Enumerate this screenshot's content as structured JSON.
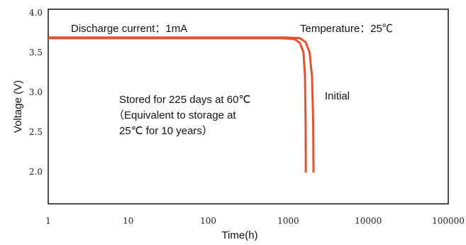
{
  "chart_data": {
    "type": "line",
    "title": "",
    "xlabel": "Time(h)",
    "ylabel": "Voltage (V)",
    "x_scale": "log",
    "xlim": [
      1,
      100000
    ],
    "ylim": [
      1.7,
      4.0
    ],
    "grid": false,
    "x_ticks": [
      {
        "value": 1,
        "label": "1"
      },
      {
        "value": 10,
        "label": "10"
      },
      {
        "value": 100,
        "label": "100"
      },
      {
        "value": 1000,
        "label": "1000"
      },
      {
        "value": 10000,
        "label": "10000"
      },
      {
        "value": 100000,
        "label": "100000"
      }
    ],
    "y_ticks": [
      {
        "value": 4.0,
        "label": "4.0"
      },
      {
        "value": 3.5,
        "label": "3.5"
      },
      {
        "value": 3.0,
        "label": "3.0"
      },
      {
        "value": 2.5,
        "label": "2.5"
      },
      {
        "value": 2.0,
        "label": "2.0"
      }
    ],
    "series": [
      {
        "name": "Stored for 225 days at 60℃",
        "color": "#e8502f",
        "x": [
          1,
          100,
          800,
          1200,
          1400,
          1550,
          1620,
          1650,
          1660
        ],
        "y": [
          3.68,
          3.68,
          3.68,
          3.67,
          3.62,
          3.5,
          3.2,
          2.6,
          1.99
        ]
      },
      {
        "name": "Initial",
        "color": "#e8502f",
        "x": [
          1,
          100,
          900,
          1400,
          1650,
          1850,
          1980,
          2050,
          2070
        ],
        "y": [
          3.69,
          3.69,
          3.69,
          3.68,
          3.63,
          3.5,
          3.2,
          2.6,
          1.99
        ]
      }
    ],
    "annotations": [
      {
        "id": "condition",
        "text": "Discharge current：1mA"
      },
      {
        "id": "temperature",
        "text": "Temperature：25℃"
      },
      {
        "id": "stored_line1",
        "text": "Stored for 225 days at 60℃"
      },
      {
        "id": "stored_line2",
        "text": "（Equivalent to storage at"
      },
      {
        "id": "stored_line3",
        "text": "25℃ for 10 years）"
      },
      {
        "id": "initial",
        "text": "Initial"
      }
    ]
  }
}
